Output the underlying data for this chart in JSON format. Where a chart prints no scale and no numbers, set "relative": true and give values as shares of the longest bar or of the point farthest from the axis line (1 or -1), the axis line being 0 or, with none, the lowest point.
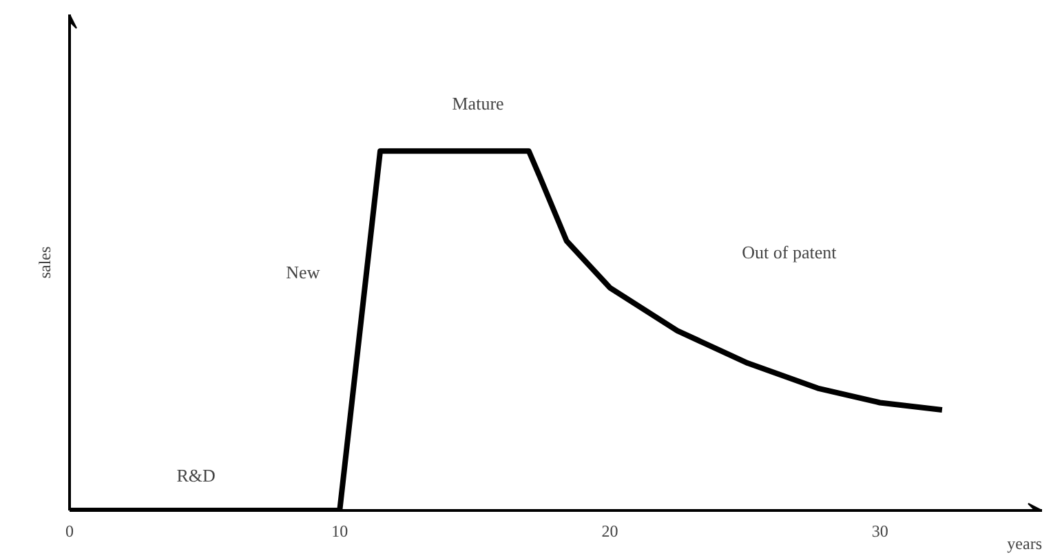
{
  "chart_data": {
    "type": "line",
    "relative": true,
    "xlabel": "years",
    "ylabel": "sales",
    "x": [
      0,
      10,
      11.5,
      17,
      17.4,
      18.4,
      20,
      22.5,
      25.1,
      27.7,
      30,
      32.3
    ],
    "series": [
      {
        "color": "#000000",
        "values": [
          0,
          0,
          1,
          1,
          0.93,
          0.75,
          0.62,
          0.5,
          0.41,
          0.34,
          0.3,
          0.28
        ]
      }
    ],
    "xlim": [
      0,
      36
    ],
    "xticks": [
      0,
      10,
      20,
      30
    ],
    "grid": false,
    "marker": "none",
    "line_style": "solid",
    "annotations": [
      "R&D",
      "New",
      "Mature",
      "Out of patent"
    ]
  }
}
